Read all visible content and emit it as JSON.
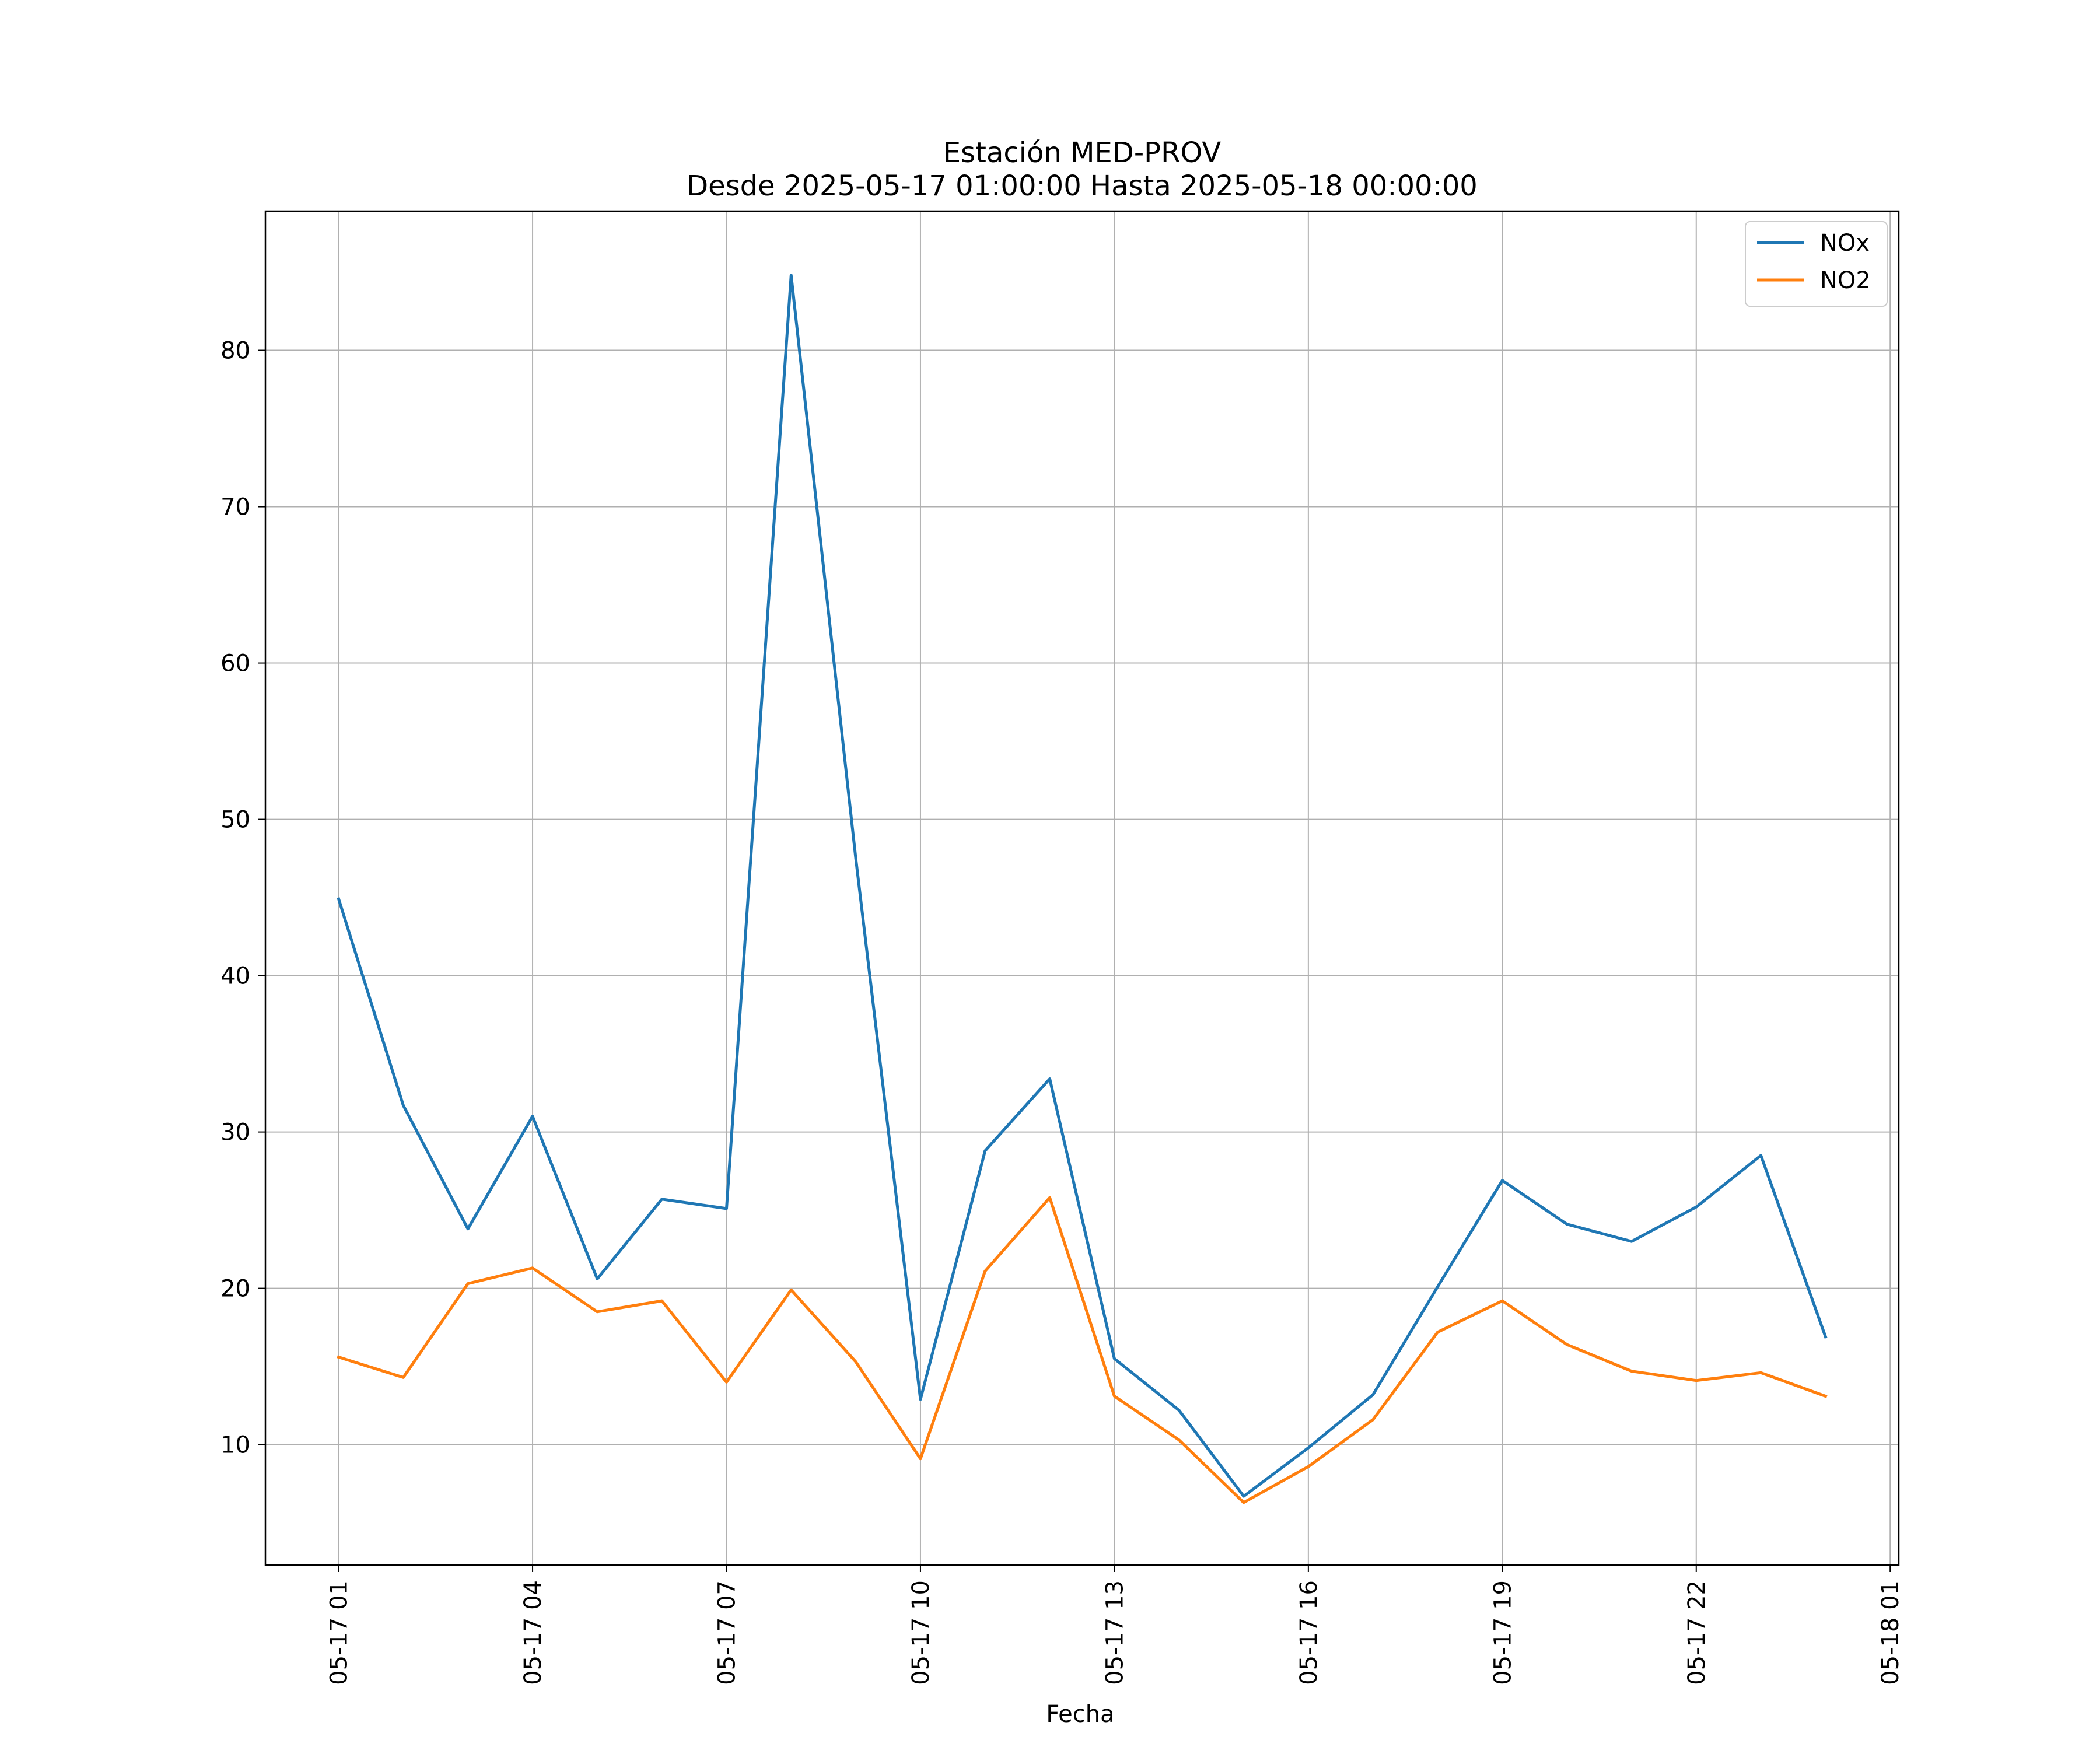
{
  "chart_data": {
    "type": "line",
    "title": "Estación MED-PROV",
    "subtitle": "Desde 2025-05-17 01:00:00 Hasta 2025-05-18 00:00:00",
    "xlabel": "Fecha",
    "ylabel": "",
    "x": [
      "2025-05-17 01:00",
      "2025-05-17 02:00",
      "2025-05-17 03:00",
      "2025-05-17 04:00",
      "2025-05-17 05:00",
      "2025-05-17 06:00",
      "2025-05-17 07:00",
      "2025-05-17 08:00",
      "2025-05-17 09:00",
      "2025-05-17 10:00",
      "2025-05-17 11:00",
      "2025-05-17 12:00",
      "2025-05-17 13:00",
      "2025-05-17 14:00",
      "2025-05-17 15:00",
      "2025-05-17 16:00",
      "2025-05-17 17:00",
      "2025-05-17 18:00",
      "2025-05-17 19:00",
      "2025-05-17 20:00",
      "2025-05-17 21:00",
      "2025-05-17 22:00",
      "2025-05-17 23:00",
      "2025-05-18 00:00"
    ],
    "x_ticks": [
      "05-17 01",
      "05-17 04",
      "05-17 07",
      "05-17 10",
      "05-17 13",
      "05-17 16",
      "05-17 19",
      "05-17 22",
      "05-18 01"
    ],
    "xlim": [
      "2025-05-16 23:52",
      "2025-05-18 01:08"
    ],
    "y_ticks": [
      10,
      20,
      30,
      40,
      50,
      60,
      70,
      80
    ],
    "ylim": [
      2.3,
      88.9
    ],
    "grid": true,
    "legend_position": "top-right",
    "series": [
      {
        "name": "NOx",
        "color": "#1f77b4",
        "values": [
          44.9,
          31.7,
          23.8,
          31.0,
          20.6,
          25.7,
          25.1,
          84.8,
          47.5,
          12.9,
          28.8,
          33.4,
          15.5,
          12.2,
          6.7,
          9.8,
          13.2,
          20.1,
          26.9,
          24.1,
          23.0,
          25.2,
          28.5,
          16.9
        ]
      },
      {
        "name": "NO2",
        "color": "#ff7f0e",
        "values": [
          15.6,
          14.3,
          20.3,
          21.3,
          18.5,
          19.2,
          14.0,
          19.9,
          15.3,
          9.1,
          21.1,
          25.8,
          13.1,
          10.3,
          6.3,
          8.6,
          11.6,
          17.2,
          19.2,
          16.4,
          14.7,
          14.1,
          14.6,
          13.1
        ]
      }
    ]
  }
}
